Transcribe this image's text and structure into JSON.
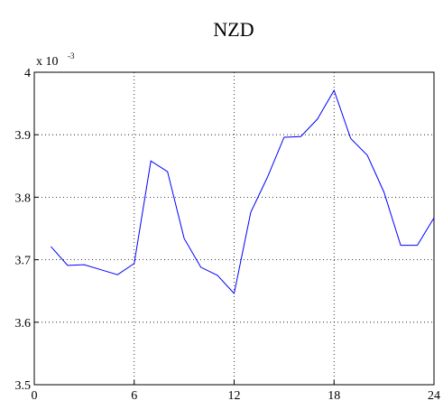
{
  "chart_data": {
    "type": "line",
    "title": "NZD",
    "exponent_label": {
      "base": "x 10",
      "power": "-3"
    },
    "x": [
      1,
      2,
      3,
      4,
      5,
      6,
      7,
      8,
      9,
      10,
      11,
      12,
      13,
      14,
      15,
      16,
      17,
      18,
      19,
      20,
      21,
      22,
      23,
      24
    ],
    "series": [
      {
        "color": "#0000ff",
        "values": [
          3.721,
          3.691,
          3.692,
          3.684,
          3.676,
          3.694,
          3.858,
          3.841,
          3.734,
          3.688,
          3.675,
          3.646,
          3.776,
          3.832,
          3.896,
          3.897,
          3.925,
          3.971,
          3.894,
          3.867,
          3.808,
          3.723,
          3.723,
          3.767
        ]
      }
    ],
    "xlim": [
      0,
      24
    ],
    "xticks": [
      0,
      6,
      12,
      18,
      24
    ],
    "ylim": [
      3.5,
      4
    ],
    "yticks": [
      3.5,
      3.6,
      3.7,
      3.8,
      3.9,
      4
    ],
    "grid": true
  }
}
